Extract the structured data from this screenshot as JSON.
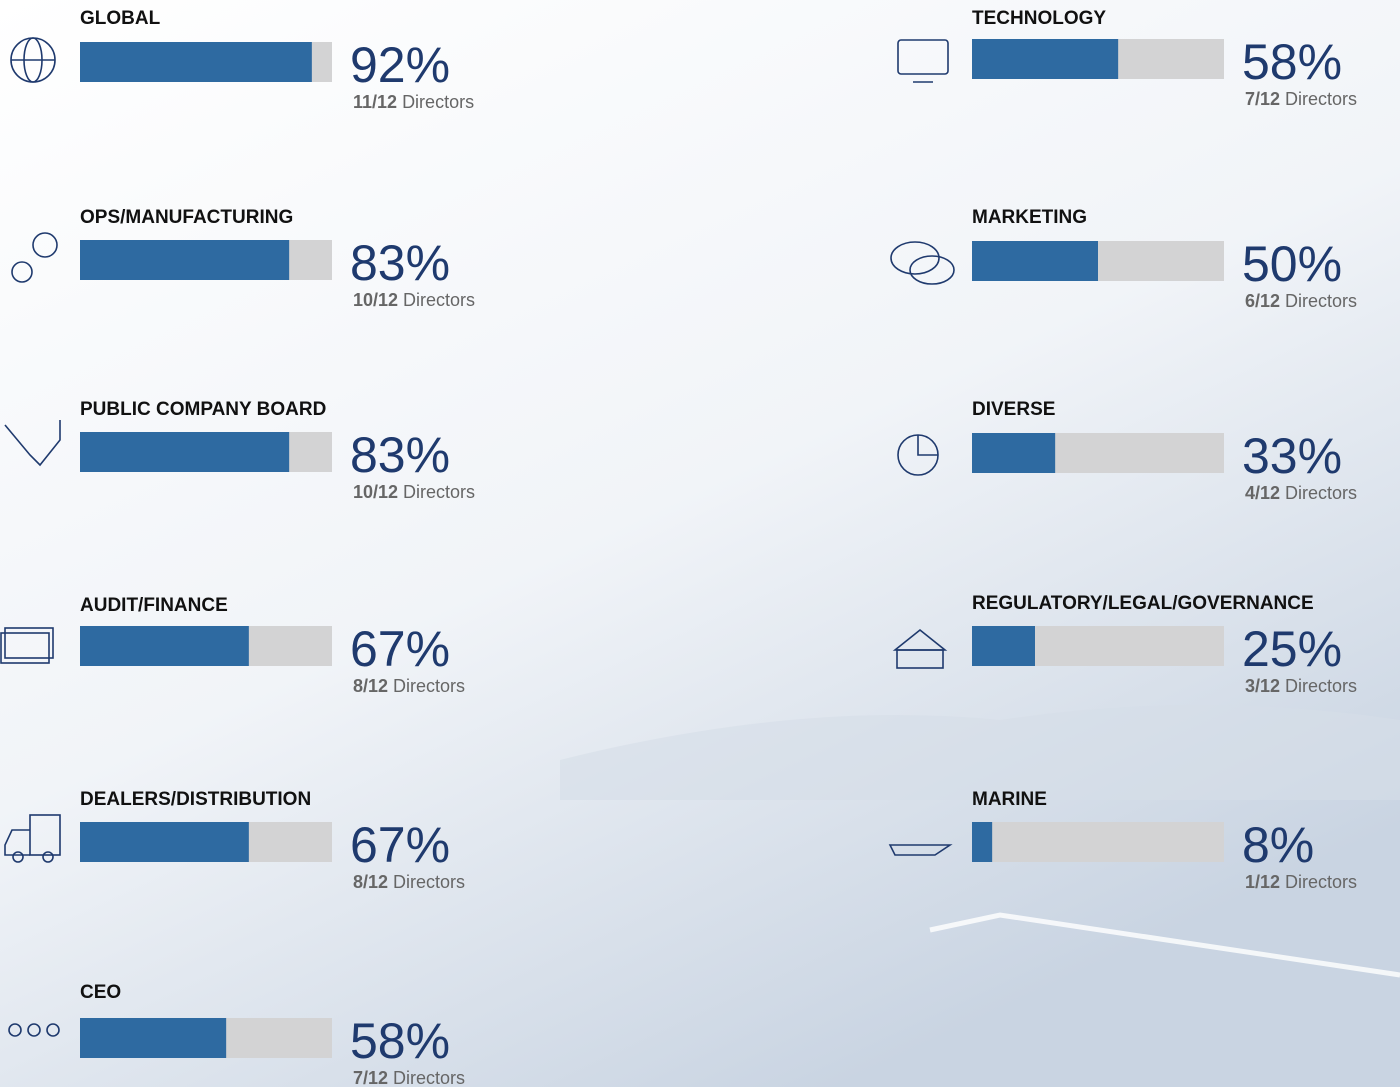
{
  "chart_data": {
    "type": "bar",
    "categories": [
      "GLOBAL",
      "OPS/MANUFACTURING",
      "PUBLIC COMPANY BOARD",
      "AUDIT/FINANCE",
      "DEALERS/DISTRIBUTION",
      "CEO",
      "TECHNOLOGY",
      "MARKETING",
      "DIVERSE",
      "REGULATORY/LEGAL/GOVERNANCE",
      "MARINE"
    ],
    "values": [
      92,
      83,
      83,
      67,
      67,
      58,
      58,
      50,
      33,
      25,
      8
    ],
    "value_labels": [
      "92%",
      "83%",
      "83%",
      "67%",
      "67%",
      "58%",
      "58%",
      "50%",
      "33%",
      "25%",
      "8%"
    ],
    "counts": [
      "11/12",
      "10/12",
      "10/12",
      "8/12",
      "8/12",
      "7/12",
      "7/12",
      "6/12",
      "4/12",
      "3/12",
      "1/12"
    ],
    "count_unit": "Directors",
    "xlim": [
      0,
      100
    ],
    "color": "#2e6aa1",
    "track_color": "#d3d3d4"
  }
}
